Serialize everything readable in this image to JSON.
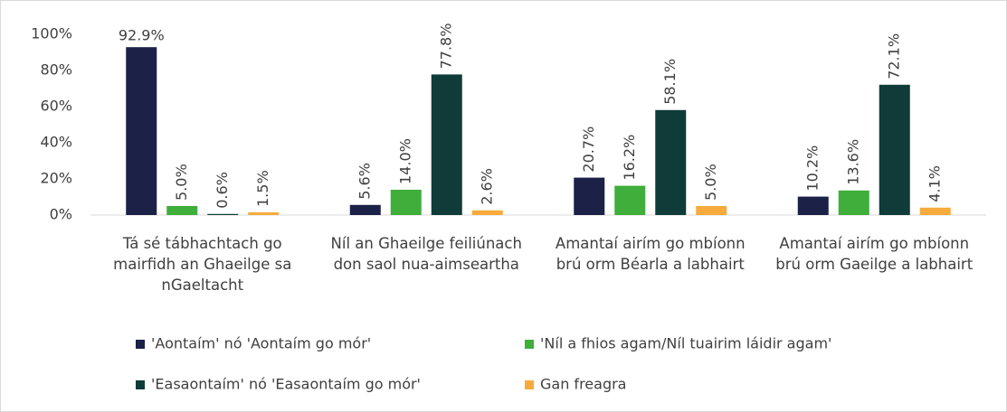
{
  "chart_data": {
    "type": "bar",
    "categories": [
      "Tá sé tábhachtach go mairfidh an Ghaeilge sa nGaeltacht",
      "Níl an Ghaeilge feiliúnach don saol nua-aimseartha",
      "Amantaí airím go mbíonn brú orm Béarla a labhairt",
      "Amantaí airím go mbíonn brú orm Gaeilge a labhairt"
    ],
    "series": [
      {
        "name": "'Aontaím' nó 'Aontaím go mór'",
        "color": "#1b2147",
        "values": [
          92.9,
          5.6,
          20.7,
          10.2
        ],
        "value_labels": [
          "92.9%",
          "5.6%",
          "20.7%",
          "10.2%"
        ]
      },
      {
        "name": "'Níl a fhios agam/Níl tuairim láidir agam'",
        "color": "#3fae3a",
        "values": [
          5.0,
          14.0,
          16.2,
          13.6
        ],
        "value_labels": [
          "5.0%",
          "14.0%",
          "16.2%",
          "13.6%"
        ]
      },
      {
        "name": "'Easaontaím' nó 'Easaontaím go mór'",
        "color": "#0f3b38",
        "values": [
          0.6,
          77.8,
          58.1,
          72.1
        ],
        "value_labels": [
          "0.6%",
          "77.8%",
          "58.1%",
          "72.1%"
        ]
      },
      {
        "name": "Gan freagra",
        "color": "#f6ab3c",
        "values": [
          1.5,
          2.6,
          5.0,
          4.1
        ],
        "value_labels": [
          "1.5%",
          "2.6%",
          "5.0%",
          "4.1%"
        ]
      }
    ],
    "ylim": [
      0,
      100
    ],
    "yticks": [
      {
        "value": 0,
        "label": "0%"
      },
      {
        "value": 20,
        "label": "20%"
      },
      {
        "value": 40,
        "label": "40%"
      },
      {
        "value": 60,
        "label": "60%"
      },
      {
        "value": 80,
        "label": "80%"
      },
      {
        "value": 100,
        "label": "100%"
      }
    ],
    "grid": false
  }
}
